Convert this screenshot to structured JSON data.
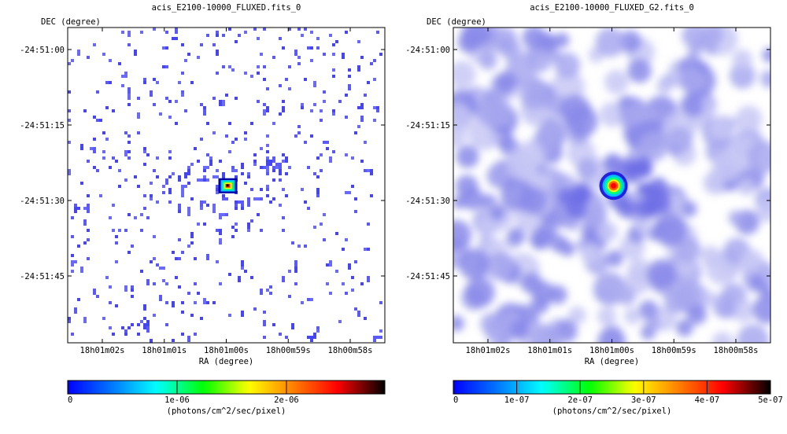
{
  "chart_data": [
    {
      "type": "heatmap",
      "title": "acis_E2100-10000_FLUXED.fits_0",
      "xlabel": "RA (degree)",
      "ylabel": "DEC (degree)",
      "x_ticks": [
        "18h01m02s",
        "18h01m01s",
        "18h01m00s",
        "18h00m59s",
        "18h00m58s"
      ],
      "y_ticks": [
        "-24:51:00",
        "-24:51:15",
        "-24:51:30",
        "-24:51:45"
      ],
      "colorbar": {
        "label": "(photons/cm^2/sec/pixel)",
        "range": [
          0,
          2.9e-06
        ],
        "ticks": [
          {
            "value": 0,
            "label": "0"
          },
          {
            "value": 1e-06,
            "label": "1e-06"
          },
          {
            "value": 2e-06,
            "label": "2e-06"
          }
        ]
      },
      "style": "sparse-pixels",
      "source_peak_fraction": 1.0,
      "background_colors": [
        "#5a5af8",
        "#4646f0",
        "#6a6afa"
      ],
      "source_colors": [
        "#0000aa",
        "#00c8ff",
        "#00ff88",
        "#ffff00",
        "#ff2200",
        "#000000"
      ]
    },
    {
      "type": "heatmap",
      "title": "acis_E2100-10000_FLUXED_G2.fits_0",
      "xlabel": "RA (degree)",
      "ylabel": "DEC (degree)",
      "x_ticks": [
        "18h01m02s",
        "18h01m01s",
        "18h01m00s",
        "18h00m59s",
        "18h00m58s"
      ],
      "y_ticks": [
        "-24:51:00",
        "-24:51:15",
        "-24:51:30",
        "-24:51:45"
      ],
      "colorbar": {
        "label": "(photons/cm^2/sec/pixel)",
        "range": [
          0,
          5e-07
        ],
        "ticks": [
          {
            "value": 0,
            "label": "0"
          },
          {
            "value": 1e-07,
            "label": "1e-07"
          },
          {
            "value": 2e-07,
            "label": "2e-07"
          },
          {
            "value": 3e-07,
            "label": "3e-07"
          },
          {
            "value": 4e-07,
            "label": "4e-07"
          },
          {
            "value": 5e-07,
            "label": "5e-07"
          }
        ]
      },
      "style": "smoothed",
      "source_peak_fraction": 0.86,
      "background_colors": [
        "#c8c8f6",
        "#a8a8f0",
        "#8a8aea"
      ],
      "source_colors": [
        "#2020e0",
        "#00c0ff",
        "#00ff80",
        "#ffff00",
        "#ff6000",
        "#ff0000"
      ]
    }
  ]
}
